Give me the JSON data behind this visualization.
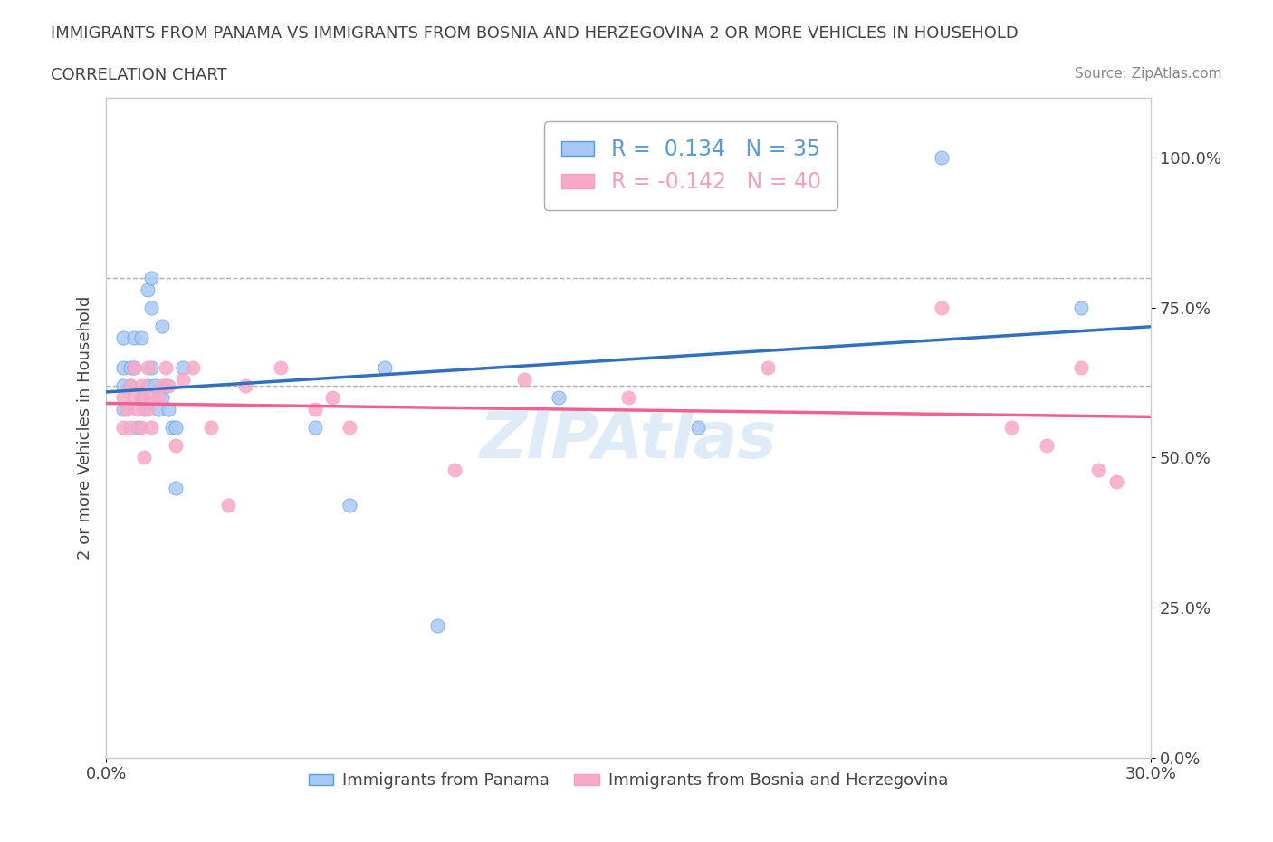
{
  "title_line1": "IMMIGRANTS FROM PANAMA VS IMMIGRANTS FROM BOSNIA AND HERZEGOVINA 2 OR MORE VEHICLES IN HOUSEHOLD",
  "title_line2": "CORRELATION CHART",
  "source_text": "Source: ZipAtlas.com",
  "ylabel": "2 or more Vehicles in Household",
  "xlim": [
    0.0,
    0.3
  ],
  "ylim": [
    0.0,
    1.1
  ],
  "ytick_labels": [
    "0.0%",
    "25.0%",
    "50.0%",
    "75.0%",
    "100.0%"
  ],
  "ytick_values": [
    0.0,
    0.25,
    0.5,
    0.75,
    1.0
  ],
  "xtick_labels": [
    "0.0%",
    "30.0%"
  ],
  "xtick_values": [
    0.0,
    0.3
  ],
  "legend_entry1_color": "#a8c8f8",
  "legend_entry2_color": "#f8a8c8",
  "R1": 0.134,
  "N1": 35,
  "R2": -0.142,
  "N2": 40,
  "blue_color": "#5b9bd5",
  "pink_color": "#f4a0b8",
  "scatter_blue_color": "#a8c8f8",
  "scatter_pink_color": "#f8a8c8",
  "trendline1_color": "#3070c0",
  "trendline2_color": "#f06090",
  "watermark_color": "#c0d8f0",
  "dashed_line_color": "#b0b0b0",
  "background_color": "#ffffff",
  "panama_x": [
    0.005,
    0.005,
    0.005,
    0.005,
    0.007,
    0.007,
    0.008,
    0.008,
    0.009,
    0.01,
    0.01,
    0.011,
    0.012,
    0.012,
    0.013,
    0.013,
    0.013,
    0.014,
    0.015,
    0.016,
    0.016,
    0.017,
    0.018,
    0.019,
    0.02,
    0.02,
    0.022,
    0.06,
    0.07,
    0.08,
    0.095,
    0.13,
    0.17,
    0.24,
    0.28
  ],
  "panama_y": [
    0.58,
    0.62,
    0.65,
    0.7,
    0.62,
    0.65,
    0.65,
    0.7,
    0.55,
    0.6,
    0.7,
    0.58,
    0.62,
    0.78,
    0.8,
    0.65,
    0.75,
    0.62,
    0.58,
    0.72,
    0.6,
    0.62,
    0.58,
    0.55,
    0.45,
    0.55,
    0.65,
    0.55,
    0.42,
    0.65,
    0.22,
    0.6,
    0.55,
    1.0,
    0.75
  ],
  "bosnia_x": [
    0.005,
    0.005,
    0.006,
    0.007,
    0.007,
    0.008,
    0.008,
    0.009,
    0.01,
    0.01,
    0.011,
    0.011,
    0.012,
    0.012,
    0.013,
    0.013,
    0.015,
    0.016,
    0.017,
    0.018,
    0.02,
    0.022,
    0.025,
    0.03,
    0.035,
    0.04,
    0.05,
    0.06,
    0.065,
    0.07,
    0.1,
    0.12,
    0.15,
    0.19,
    0.24,
    0.26,
    0.27,
    0.28,
    0.285,
    0.29
  ],
  "bosnia_y": [
    0.55,
    0.6,
    0.58,
    0.62,
    0.55,
    0.65,
    0.6,
    0.58,
    0.55,
    0.62,
    0.6,
    0.5,
    0.58,
    0.65,
    0.6,
    0.55,
    0.6,
    0.62,
    0.65,
    0.62,
    0.52,
    0.63,
    0.65,
    0.55,
    0.42,
    0.62,
    0.65,
    0.58,
    0.6,
    0.55,
    0.48,
    0.63,
    0.6,
    0.65,
    0.75,
    0.55,
    0.52,
    0.65,
    0.48,
    0.46
  ]
}
